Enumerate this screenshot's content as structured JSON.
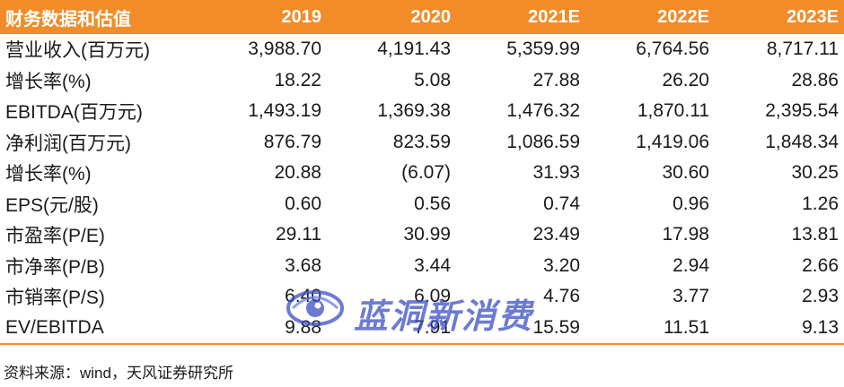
{
  "table": {
    "columns": [
      "财务数据和估值",
      "2019",
      "2020",
      "2021E",
      "2022E",
      "2023E"
    ],
    "rows": [
      {
        "metric": "营业收入(百万元)",
        "values": [
          "3,988.70",
          "4,191.43",
          "5,359.99",
          "6,764.56",
          "8,717.11"
        ]
      },
      {
        "metric": "增长率(%)",
        "values": [
          "18.22",
          "5.08",
          "27.88",
          "26.20",
          "28.86"
        ]
      },
      {
        "metric": "EBITDA(百万元)",
        "values": [
          "1,493.19",
          "1,369.38",
          "1,476.32",
          "1,870.11",
          "2,395.54"
        ]
      },
      {
        "metric": "净利润(百万元)",
        "values": [
          "876.79",
          "823.59",
          "1,086.59",
          "1,419.06",
          "1,848.34"
        ]
      },
      {
        "metric": "增长率(%)",
        "values": [
          "20.88",
          "(6.07)",
          "31.93",
          "30.60",
          "30.25"
        ]
      },
      {
        "metric": "EPS(元/股)",
        "values": [
          "0.60",
          "0.56",
          "0.74",
          "0.96",
          "1.26"
        ]
      },
      {
        "metric": "市盈率(P/E)",
        "values": [
          "29.11",
          "30.99",
          "23.49",
          "17.98",
          "13.81"
        ]
      },
      {
        "metric": "市净率(P/B)",
        "values": [
          "3.68",
          "3.44",
          "3.20",
          "2.94",
          "2.66"
        ]
      },
      {
        "metric": "市销率(P/S)",
        "values": [
          "6.40",
          "6.09",
          "4.76",
          "3.77",
          "2.93"
        ]
      },
      {
        "metric": "EV/EBITDA",
        "values": [
          "9.88",
          "7.91",
          "15.59",
          "11.51",
          "9.13"
        ]
      }
    ]
  },
  "source": "资料来源：wind，天风证券研究所",
  "watermark": {
    "text": "蓝洞新消费",
    "color": "#3b4fc4"
  },
  "colors": {
    "header_bg": "#f28c28",
    "header_text": "#ffffff",
    "rule": "#f28c28"
  }
}
